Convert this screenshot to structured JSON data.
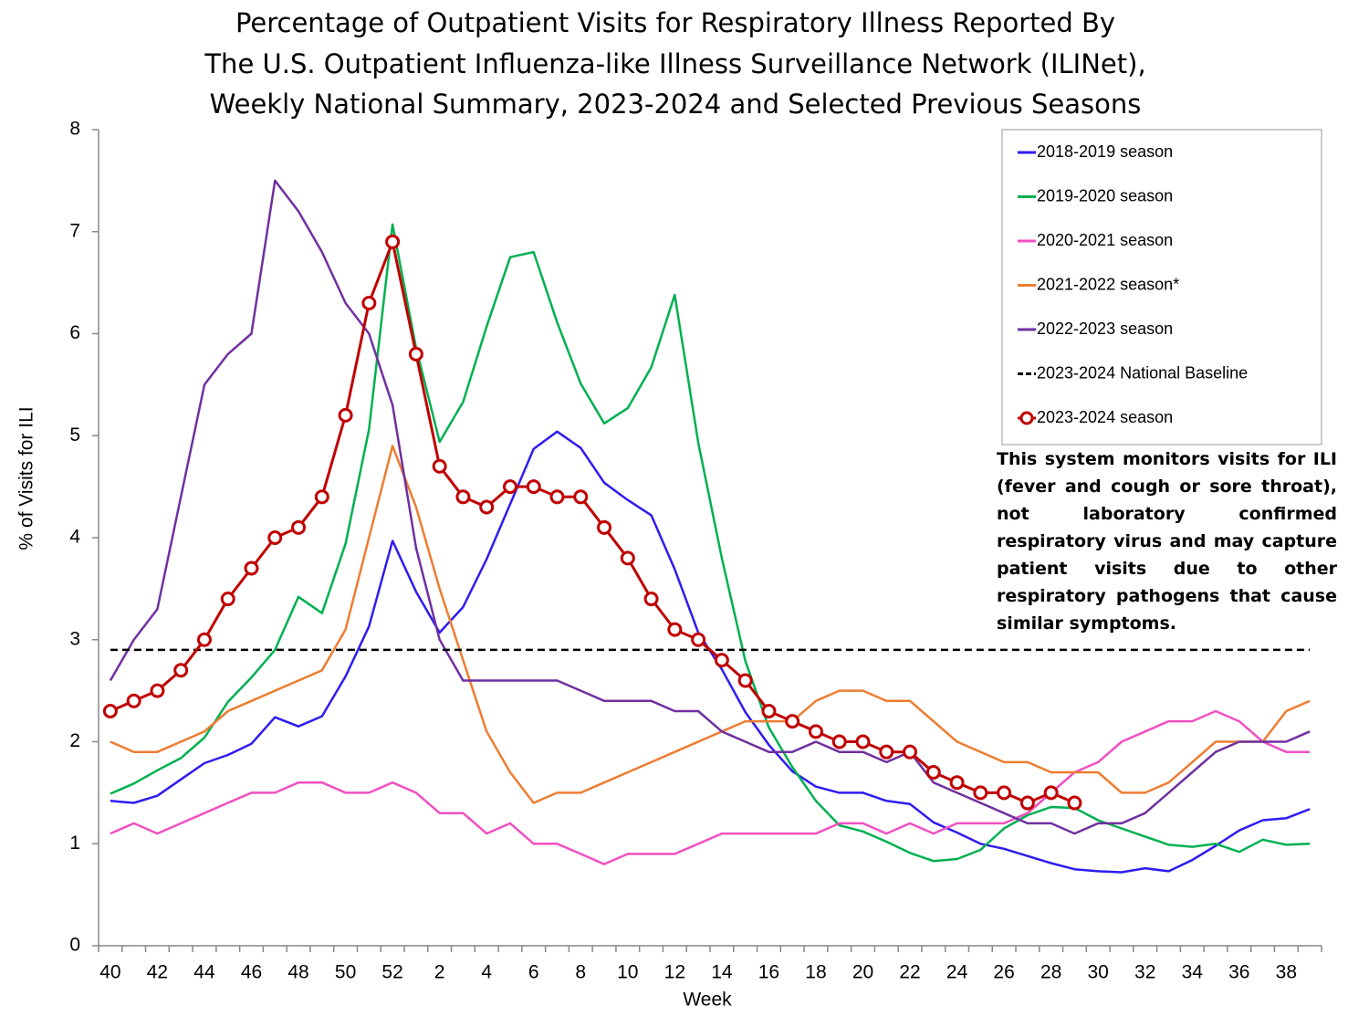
{
  "chart_data": {
    "type": "line",
    "title": [
      "Percentage of Outpatient Visits for Respiratory Illness Reported By",
      "The U.S. Outpatient Influenza-like Illness Surveillance Network (ILINet),",
      "Weekly National Summary, 2023-2024 and Selected Previous Seasons"
    ],
    "x_label": "Week",
    "y_label": "% of Visits for ILI",
    "categories": [
      "40",
      null,
      "42",
      null,
      "44",
      null,
      "46",
      null,
      "48",
      null,
      "50",
      null,
      "52",
      null,
      "2",
      null,
      "4",
      null,
      "6",
      null,
      "8",
      null,
      "10",
      null,
      "12",
      null,
      "14",
      null,
      "16",
      null,
      "18",
      null,
      "20",
      null,
      "22",
      null,
      "24",
      null,
      "26",
      null,
      "28",
      null,
      "30",
      null,
      "32",
      null,
      "34",
      null,
      "36",
      null,
      "38",
      null
    ],
    "ylim": [
      0,
      8
    ],
    "yticks": [
      0,
      1,
      2,
      3,
      4,
      5,
      6,
      7,
      8
    ],
    "series": [
      {
        "name": "2018-2019 season",
        "color": "#2f1cf0",
        "values": [
          1.42,
          1.4,
          1.47,
          1.63,
          1.79,
          1.87,
          1.98,
          2.24,
          2.15,
          2.25,
          2.64,
          3.13,
          3.97,
          3.47,
          3.07,
          3.32,
          3.79,
          4.33,
          4.87,
          5.04,
          4.88,
          4.54,
          4.37,
          4.22,
          3.69,
          3.07,
          2.71,
          2.29,
          1.97,
          1.71,
          1.56,
          1.5,
          1.5,
          1.42,
          1.39,
          1.21,
          1.11,
          1.0,
          0.95,
          0.88,
          0.81,
          0.75,
          0.73,
          0.72,
          0.76,
          0.73,
          0.84,
          0.98,
          1.13,
          1.23,
          1.25,
          1.34
        ]
      },
      {
        "name": "2019-2020 season",
        "color": "#00b050",
        "values": [
          1.49,
          1.59,
          1.72,
          1.84,
          2.04,
          2.39,
          2.63,
          2.9,
          3.42,
          3.26,
          3.94,
          5.06,
          7.07,
          5.86,
          4.94,
          5.33,
          6.07,
          6.75,
          6.8,
          6.11,
          5.51,
          5.12,
          5.27,
          5.67,
          6.38,
          4.93,
          3.8,
          2.79,
          2.14,
          1.75,
          1.42,
          1.18,
          1.12,
          1.02,
          0.91,
          0.83,
          0.85,
          0.94,
          1.15,
          1.28,
          1.36,
          1.35,
          1.23,
          1.15,
          1.07,
          0.99,
          0.97,
          1.0,
          0.92,
          1.04,
          0.99,
          1.0
        ]
      },
      {
        "name": "2020-2021 season",
        "color": "#f050c0",
        "values": [
          1.1,
          1.2,
          1.1,
          1.2,
          1.3,
          1.4,
          1.5,
          1.5,
          1.6,
          1.6,
          1.5,
          1.5,
          1.6,
          1.5,
          1.3,
          1.3,
          1.1,
          1.2,
          1.0,
          1.0,
          0.9,
          0.8,
          0.9,
          0.9,
          0.9,
          1.0,
          1.1,
          1.1,
          1.1,
          1.1,
          1.1,
          1.2,
          1.2,
          1.1,
          1.2,
          1.1,
          1.2,
          1.2,
          1.2,
          1.3,
          1.5,
          1.7,
          1.8,
          2.0,
          2.1,
          2.2,
          2.2,
          2.3,
          2.2,
          2.0,
          1.9,
          1.9
        ]
      },
      {
        "name": "2021-2022 season*",
        "color": "#ed7d31",
        "values": [
          2.0,
          1.9,
          1.9,
          2.0,
          2.1,
          2.3,
          2.4,
          2.5,
          2.6,
          2.7,
          3.1,
          4.0,
          4.9,
          4.3,
          3.5,
          2.8,
          2.1,
          1.7,
          1.4,
          1.5,
          1.5,
          1.6,
          1.7,
          1.8,
          1.9,
          2.0,
          2.1,
          2.2,
          2.2,
          2.2,
          2.4,
          2.5,
          2.5,
          2.4,
          2.4,
          2.2,
          2.0,
          1.9,
          1.8,
          1.8,
          1.7,
          1.7,
          1.7,
          1.5,
          1.5,
          1.6,
          1.8,
          2.0,
          2.0,
          2.0,
          2.3,
          2.4
        ]
      },
      {
        "name": "2022-2023 season",
        "color": "#7030a0",
        "values": [
          2.6,
          3.0,
          3.3,
          4.4,
          5.5,
          5.8,
          6.0,
          7.5,
          7.2,
          6.8,
          6.3,
          6.0,
          5.3,
          3.9,
          3.0,
          2.6,
          2.6,
          2.6,
          2.6,
          2.6,
          2.5,
          2.4,
          2.4,
          2.4,
          2.3,
          2.3,
          2.1,
          2.0,
          1.9,
          1.9,
          2.0,
          1.9,
          1.9,
          1.8,
          1.9,
          1.6,
          1.5,
          1.4,
          1.3,
          1.2,
          1.2,
          1.1,
          1.2,
          1.2,
          1.3,
          1.5,
          1.7,
          1.9,
          2.0,
          2.0,
          2.0,
          2.1
        ]
      },
      {
        "name": "2023-2024 National Baseline",
        "color": "#000000",
        "dashed": true,
        "values": [
          2.9,
          2.9,
          2.9,
          2.9,
          2.9,
          2.9,
          2.9,
          2.9,
          2.9,
          2.9,
          2.9,
          2.9,
          2.9,
          2.9,
          2.9,
          2.9,
          2.9,
          2.9,
          2.9,
          2.9,
          2.9,
          2.9,
          2.9,
          2.9,
          2.9,
          2.9,
          2.9,
          2.9,
          2.9,
          2.9,
          2.9,
          2.9,
          2.9,
          2.9,
          2.9,
          2.9,
          2.9,
          2.9,
          2.9,
          2.9,
          2.9,
          2.9,
          2.9,
          2.9,
          2.9,
          2.9,
          2.9,
          2.9,
          2.9,
          2.9,
          2.9,
          2.9
        ]
      },
      {
        "name": "2023-2024 season",
        "color": "#c00000",
        "markers": true,
        "values": [
          2.3,
          2.4,
          2.5,
          2.7,
          3.0,
          3.4,
          3.7,
          4.0,
          4.1,
          4.4,
          5.2,
          6.3,
          6.9,
          5.8,
          4.7,
          4.4,
          4.3,
          4.5,
          4.5,
          4.4,
          4.4,
          4.1,
          3.8,
          3.4,
          3.1,
          3.0,
          2.8,
          2.6,
          2.3,
          2.2,
          2.1,
          2.0,
          2.0,
          1.9,
          1.9,
          1.7,
          1.6,
          1.5,
          1.5,
          1.4,
          1.5,
          1.4,
          null,
          null,
          null,
          null,
          null,
          null,
          null,
          null,
          null,
          null
        ]
      }
    ],
    "annotation": "This system monitors visits for ILI (fever and cough or sore throat), not laboratory confirmed respiratory virus and may capture patient visits due to other respiratory pathogens that cause similar symptoms."
  }
}
